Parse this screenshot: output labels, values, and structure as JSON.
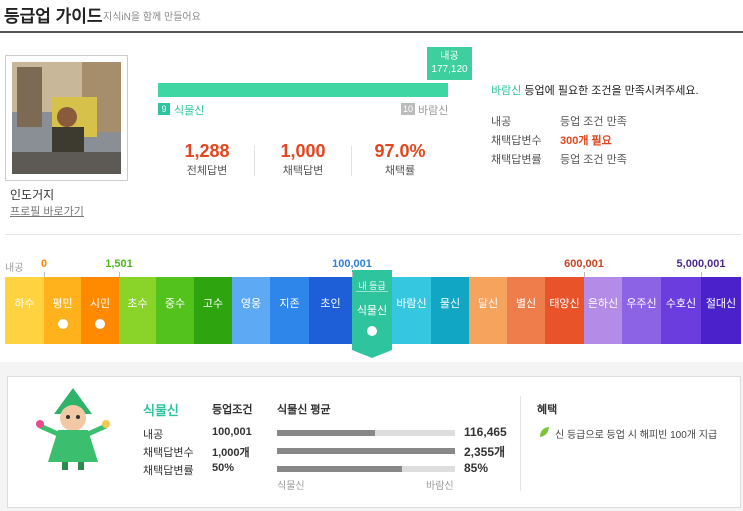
{
  "header": {
    "title": "등급업 가이드",
    "subtitle": "지식iN을 함께 만들어요"
  },
  "profile": {
    "name": "인도거지",
    "link": "프로필 바로가기"
  },
  "progress": {
    "tooltip": {
      "label": "내공",
      "value": "177,120"
    },
    "current": {
      "level": "9",
      "name": "식물신"
    },
    "next": {
      "level": "10",
      "name": "바람신"
    }
  },
  "stats": [
    {
      "value": "1,288",
      "label": "전체답변"
    },
    {
      "value": "1,000",
      "label": "채택답변"
    },
    {
      "value": "97.0%",
      "label": "채택률"
    }
  ],
  "requirement": {
    "highlight": "바람신",
    "text": " 등업에 필요한 조건을 만족시켜주세요.",
    "rows": [
      {
        "label": "내공",
        "value": "등업 조건 만족"
      },
      {
        "label": "채택답변수",
        "value": "300개 필요"
      },
      {
        "label": "채택답변률",
        "value": "등업 조건 만족"
      }
    ]
  },
  "scale": {
    "label": "내공",
    "marks": [
      {
        "value": "0",
        "color": "#ff8c00"
      },
      {
        "value": "1,501",
        "color": "#4cb81a"
      },
      {
        "value": "100,001",
        "color": "#2f7fdc"
      },
      {
        "value": "600,001",
        "color": "#c9431f"
      },
      {
        "value": "5,000,001",
        "color": "#4b2a8c"
      }
    ]
  },
  "my_grade_label": "내 등급",
  "grades": [
    {
      "name": "하수",
      "color": "#ffd23f"
    },
    {
      "name": "평민",
      "color": "#ffb21c"
    },
    {
      "name": "시민",
      "color": "#ff8a00"
    },
    {
      "name": "초수",
      "color": "#8ad42a"
    },
    {
      "name": "중수",
      "color": "#53c21c"
    },
    {
      "name": "고수",
      "color": "#2ea50f"
    },
    {
      "name": "영웅",
      "color": "#5ea9f3"
    },
    {
      "name": "지존",
      "color": "#2f86ea"
    },
    {
      "name": "초인",
      "color": "#1e5fd8"
    },
    {
      "name": "식물신",
      "color": "#2ec49e"
    },
    {
      "name": "바람신",
      "color": "#35c7df"
    },
    {
      "name": "물신",
      "color": "#11a6c4"
    },
    {
      "name": "달신",
      "color": "#f6a35e"
    },
    {
      "name": "별신",
      "color": "#ef7d4b"
    },
    {
      "name": "태양신",
      "color": "#e8532a"
    },
    {
      "name": "은하신",
      "color": "#b48ce8"
    },
    {
      "name": "우주신",
      "color": "#8d63e6"
    },
    {
      "name": "수호신",
      "color": "#6b3ddf"
    },
    {
      "name": "절대신",
      "color": "#4a21cb"
    }
  ],
  "detail": {
    "name": "식물신",
    "condition_title": "등업조건",
    "average_title": "식물신 평균",
    "rows": [
      {
        "label": "내공",
        "requirement": "100,001",
        "average": "116,465"
      },
      {
        "label": "채택답변수",
        "requirement": "1,000개",
        "average": "2,355개"
      },
      {
        "label": "채택답변률",
        "requirement": "50%",
        "average": "85%"
      }
    ],
    "range": {
      "from": "식물신",
      "to": "바람신"
    },
    "benefit": {
      "title": "혜택",
      "text": "신 등급으로 등업 시 해피빈 100개 지급"
    }
  }
}
